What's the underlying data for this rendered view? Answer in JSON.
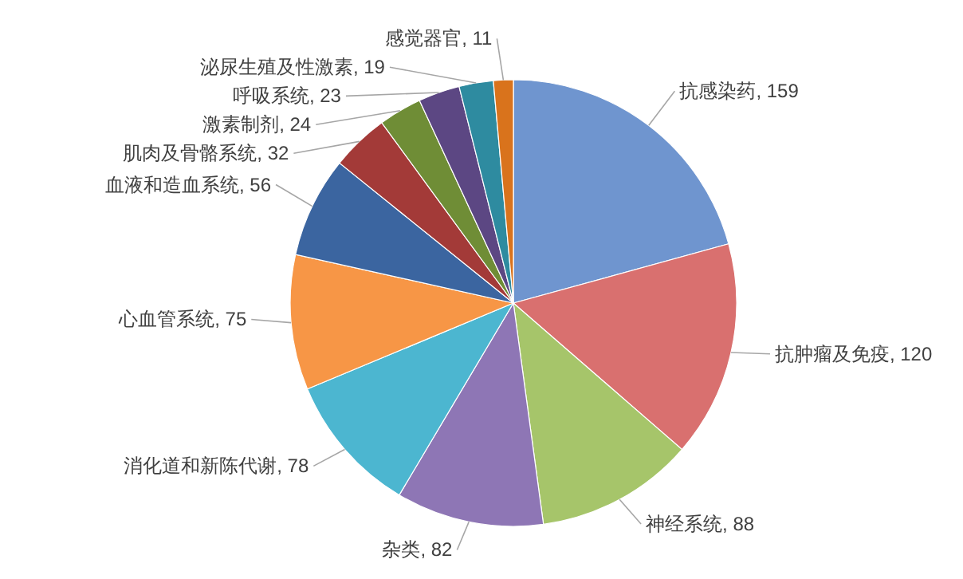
{
  "chart_data": {
    "type": "pie",
    "categories": [
      "抗感染药",
      "抗肿瘤及免疫",
      "神经系统",
      "杂类",
      "消化道和新陈代谢",
      "心血管系统",
      "血液和造血系统",
      "肌肉及骨骼系统",
      "激素制剂",
      "呼吸系统",
      "泌尿生殖及性激素",
      "感觉器官"
    ],
    "values": [
      159,
      120,
      88,
      82,
      78,
      75,
      56,
      32,
      24,
      23,
      19,
      11
    ],
    "colors": [
      "#6f95cf",
      "#d9706f",
      "#a6c56a",
      "#8e76b5",
      "#4cb6d0",
      "#f79646",
      "#3b65a0",
      "#a33a38",
      "#6f8d36",
      "#5c4783",
      "#2e8ba0",
      "#d9731c"
    ],
    "value_labels": [
      ", 159",
      ", 120",
      ", 88",
      ", 82",
      ", 78",
      ", 75",
      ", 56",
      ", 32",
      ", 24",
      ", 23",
      ", 19",
      ", 11"
    ]
  }
}
